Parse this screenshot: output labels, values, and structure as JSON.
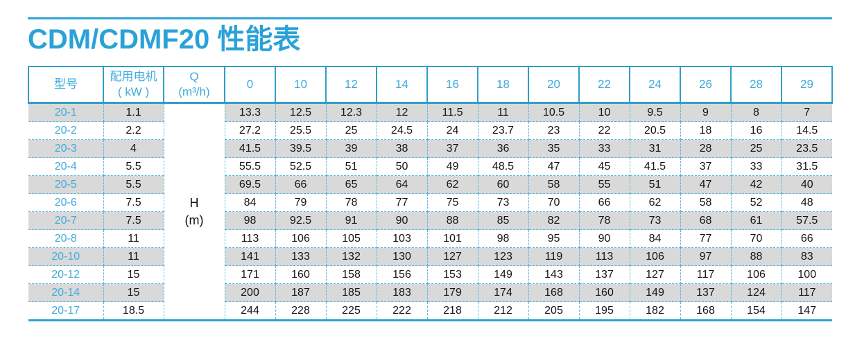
{
  "page": {
    "title": "CDM/CDMF20 性能表"
  },
  "colors": {
    "accent_blue": "#2aa2d8",
    "header_text_blue": "#3fabdc",
    "dashed_border_blue": "#58b7dc",
    "row_shade_gray": "#d9d9d9",
    "body_text": "#141414"
  },
  "table": {
    "headers": {
      "model": "型号",
      "motor_line1": "配用电机",
      "motor_line2": "( kW )",
      "q_line1": "Q",
      "q_line2": "(m³/h)"
    },
    "flow_columns": [
      "0",
      "10",
      "12",
      "14",
      "16",
      "18",
      "20",
      "22",
      "24",
      "26",
      "28",
      "29"
    ],
    "merged_cell": {
      "line1": "H",
      "line2": "(m)"
    },
    "rows": [
      {
        "model": "20-1",
        "motor": "1.1",
        "values": [
          "13.3",
          "12.5",
          "12.3",
          "12",
          "11.5",
          "11",
          "10.5",
          "10",
          "9.5",
          "9",
          "8",
          "7"
        ]
      },
      {
        "model": "20-2",
        "motor": "2.2",
        "values": [
          "27.2",
          "25.5",
          "25",
          "24.5",
          "24",
          "23.7",
          "23",
          "22",
          "20.5",
          "18",
          "16",
          "14.5"
        ]
      },
      {
        "model": "20-3",
        "motor": "4",
        "values": [
          "41.5",
          "39.5",
          "39",
          "38",
          "37",
          "36",
          "35",
          "33",
          "31",
          "28",
          "25",
          "23.5"
        ]
      },
      {
        "model": "20-4",
        "motor": "5.5",
        "values": [
          "55.5",
          "52.5",
          "51",
          "50",
          "49",
          "48.5",
          "47",
          "45",
          "41.5",
          "37",
          "33",
          "31.5"
        ]
      },
      {
        "model": "20-5",
        "motor": "5.5",
        "values": [
          "69.5",
          "66",
          "65",
          "64",
          "62",
          "60",
          "58",
          "55",
          "51",
          "47",
          "42",
          "40"
        ]
      },
      {
        "model": "20-6",
        "motor": "7.5",
        "values": [
          "84",
          "79",
          "78",
          "77",
          "75",
          "73",
          "70",
          "66",
          "62",
          "58",
          "52",
          "48"
        ]
      },
      {
        "model": "20-7",
        "motor": "7.5",
        "values": [
          "98",
          "92.5",
          "91",
          "90",
          "88",
          "85",
          "82",
          "78",
          "73",
          "68",
          "61",
          "57.5"
        ]
      },
      {
        "model": "20-8",
        "motor": "11",
        "values": [
          "113",
          "106",
          "105",
          "103",
          "101",
          "98",
          "95",
          "90",
          "84",
          "77",
          "70",
          "66"
        ]
      },
      {
        "model": "20-10",
        "motor": "11",
        "values": [
          "141",
          "133",
          "132",
          "130",
          "127",
          "123",
          "119",
          "113",
          "106",
          "97",
          "88",
          "83"
        ]
      },
      {
        "model": "20-12",
        "motor": "15",
        "values": [
          "171",
          "160",
          "158",
          "156",
          "153",
          "149",
          "143",
          "137",
          "127",
          "117",
          "106",
          "100"
        ]
      },
      {
        "model": "20-14",
        "motor": "15",
        "values": [
          "200",
          "187",
          "185",
          "183",
          "179",
          "174",
          "168",
          "160",
          "149",
          "137",
          "124",
          "117"
        ]
      },
      {
        "model": "20-17",
        "motor": "18.5",
        "values": [
          "244",
          "228",
          "225",
          "222",
          "218",
          "212",
          "205",
          "195",
          "182",
          "168",
          "154",
          "147"
        ]
      }
    ]
  }
}
